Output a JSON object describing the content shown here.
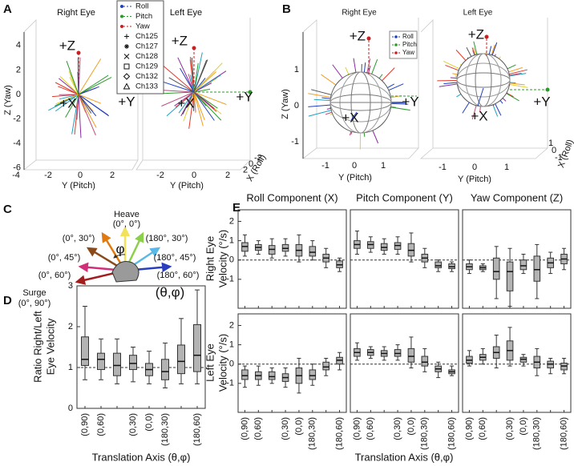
{
  "panel_a": {
    "label": "A",
    "titles": [
      "Right Eye",
      "Left Eye"
    ],
    "legend": [
      {
        "name": "Roll",
        "color": "#1f3fbf"
      },
      {
        "name": "Pitch",
        "color": "#2a9a2a"
      },
      {
        "name": "Yaw",
        "color": "#c82020"
      },
      {
        "name": "Ch125"
      },
      {
        "name": "Ch127"
      },
      {
        "name": "Ch128"
      },
      {
        "name": "Ch129"
      },
      {
        "name": "Ch132"
      },
      {
        "name": "Ch133"
      }
    ],
    "directions": {
      "z": "+Z",
      "x": "+X",
      "y": "+Y"
    },
    "axis_labels": {
      "z": "Z (Yaw)",
      "y": "Y (Pitch)",
      "x": "X (Roll)"
    },
    "zticks": [
      4,
      2,
      0,
      -2,
      -4,
      -6
    ],
    "yticks_right": [
      -4,
      -2,
      0,
      2
    ],
    "yticks_left": [
      -2,
      0,
      2
    ],
    "xticks": [
      -2,
      0,
      2
    ]
  },
  "panel_b": {
    "label": "B",
    "titles": [
      "Right Eye",
      "Left Eye"
    ],
    "legend": [
      {
        "name": "Roll",
        "color": "#1f3fbf"
      },
      {
        "name": "Pitch",
        "color": "#2a9a2a"
      },
      {
        "name": "Yaw",
        "color": "#c82020"
      }
    ],
    "directions": {
      "z": "+Z",
      "x": "+X",
      "y": "+Y"
    },
    "axis_labels": {
      "z": "Z (Yaw)",
      "y": "Y (Pitch)",
      "x": "X (Roll)"
    },
    "zticks": [
      1,
      0,
      -1
    ],
    "yticks": [
      -1,
      0,
      1
    ],
    "xticks": [
      -1,
      0,
      1
    ]
  },
  "panel_c": {
    "label": "C",
    "heave": "Heave",
    "heave_angle": "(0°, 0°)",
    "surge": "Surge",
    "surge_angle": "(0°, 90°)",
    "left_angles": [
      "(0°, 30°)",
      "(0°, 45°)",
      "(0°, 60°)"
    ],
    "right_angles": [
      "(180°, 30°)",
      "(180°, 45°)",
      "(180°, 60°)"
    ],
    "phi": "φ",
    "notation": "(θ,φ)"
  },
  "panel_e": {
    "label": "E",
    "xlabel": "Translation Axis (θ,φ)",
    "ylabels": [
      [
        "Right Eye",
        "Velocity (°/s)"
      ],
      [
        "Left Eye",
        "Velocity (°/s)"
      ]
    ]
  },
  "chart_data": [
    {
      "type": "box",
      "label": "D",
      "ylabel": [
        "Ratio Right/Left",
        "Eye Velocity"
      ],
      "xlabel": "Translation Axis (θ,φ)",
      "categories": [
        "(0,90)",
        "(0,60)",
        null,
        "(0,30)",
        "(0,0)",
        "(180,30)",
        null,
        "(180,60)"
      ],
      "ylim": [
        0,
        3
      ],
      "yticks": [
        0,
        1,
        2,
        3
      ],
      "reference_line": 1,
      "color": "#b3b3b3",
      "boxes": {
        "low": [
          0.7,
          0.7,
          0.6,
          0.65,
          0.6,
          0.5,
          0.6,
          0.6
        ],
        "q1": [
          1.05,
          0.95,
          0.8,
          0.95,
          0.8,
          0.7,
          0.85,
          0.9
        ],
        "median": [
          1.2,
          1.2,
          1.05,
          1.1,
          0.95,
          0.9,
          1.15,
          1.3
        ],
        "q3": [
          1.75,
          1.35,
          1.35,
          1.3,
          1.1,
          1.2,
          1.55,
          2.05
        ],
        "high": [
          2.5,
          1.7,
          1.7,
          1.5,
          1.4,
          1.6,
          2.2,
          2.9
        ]
      }
    },
    {
      "type": "box",
      "title": "Roll Component (X)",
      "ylim": [
        -2.5,
        2.6
      ],
      "yticks": [
        -1,
        0,
        1,
        2
      ],
      "reference_line": 0,
      "color": "#b3b3b3",
      "boxes": {
        "low": [
          0.2,
          0.3,
          0.1,
          0.2,
          -0.1,
          0,
          -0.4,
          -0.6
        ],
        "q1": [
          0.45,
          0.5,
          0.3,
          0.45,
          0.2,
          0.2,
          -0.1,
          -0.4
        ],
        "median": [
          0.7,
          0.65,
          0.55,
          0.6,
          0.5,
          0.4,
          0.1,
          -0.25
        ],
        "q3": [
          0.9,
          0.8,
          0.75,
          0.8,
          0.8,
          0.7,
          0.3,
          -0.05
        ],
        "high": [
          1.3,
          1.0,
          1.1,
          1.1,
          1.3,
          1.0,
          0.6,
          0.1
        ]
      }
    },
    {
      "type": "box",
      "title": "Pitch Component (Y)",
      "ylim": [
        -2.5,
        2.6
      ],
      "reference_line": 0,
      "color": "#b3b3b3",
      "boxes": {
        "low": [
          0.3,
          0.4,
          0.3,
          0.3,
          -0.1,
          -0.4,
          -0.6,
          -0.6
        ],
        "q1": [
          0.6,
          0.6,
          0.5,
          0.55,
          0.2,
          -0.1,
          -0.4,
          -0.45
        ],
        "median": [
          0.8,
          0.8,
          0.65,
          0.75,
          0.5,
          0.1,
          -0.3,
          -0.35
        ],
        "q3": [
          1.0,
          0.95,
          0.85,
          0.9,
          0.85,
          0.3,
          -0.1,
          -0.2
        ],
        "high": [
          1.5,
          1.2,
          1.1,
          1.2,
          1.4,
          0.6,
          0,
          -0.1
        ]
      }
    },
    {
      "type": "box",
      "title": "Yaw Component (Z)",
      "ylim": [
        -2.5,
        2.6
      ],
      "reference_line": 0,
      "color": "#b3b3b3",
      "boxes": {
        "low": [
          -0.7,
          -0.6,
          -2,
          -2.4,
          -0.7,
          -2,
          -0.7,
          -0.5
        ],
        "q1": [
          -0.5,
          -0.5,
          -1,
          -1.6,
          -0.5,
          -1.1,
          -0.4,
          -0.2
        ],
        "median": [
          -0.35,
          -0.4,
          -0.6,
          -0.6,
          -0.3,
          -0.5,
          -0.15,
          0.05
        ],
        "q3": [
          -0.2,
          -0.3,
          0.1,
          -0.1,
          0,
          0.2,
          0.1,
          0.3
        ],
        "high": [
          0,
          -0.2,
          0.7,
          0.6,
          0.3,
          0.8,
          0.4,
          0.6
        ]
      }
    },
    {
      "type": "box",
      "categories": [
        "(0,90)",
        "(0,60)",
        null,
        "(0,30)",
        "(0,0)",
        "(180,30)",
        null,
        "(180,60)"
      ],
      "ylim": [
        -2.5,
        2.6
      ],
      "yticks": [
        -1,
        0,
        1,
        2
      ],
      "reference_line": 0,
      "color": "#b3b3b3",
      "boxes": {
        "low": [
          -1.2,
          -1.1,
          -1,
          -1.2,
          -1.5,
          -1.1,
          -0.6,
          -0.3
        ],
        "q1": [
          -0.8,
          -0.8,
          -0.8,
          -0.9,
          -1.0,
          -0.8,
          -0.3,
          0
        ],
        "median": [
          -0.6,
          -0.6,
          -0.65,
          -0.7,
          -0.6,
          -0.6,
          -0.15,
          0.2
        ],
        "q3": [
          -0.3,
          -0.4,
          -0.4,
          -0.5,
          -0.2,
          -0.3,
          0.1,
          0.35
        ],
        "high": [
          -0.1,
          -0.1,
          -0.2,
          -0.2,
          0.3,
          0,
          0.3,
          0.6
        ]
      }
    },
    {
      "type": "box",
      "categories": [
        "(0,90)",
        "(0,60)",
        null,
        "(0,30)",
        "(0,0)",
        "(180,30)",
        null,
        "(180,60)"
      ],
      "ylim": [
        -2.5,
        2.6
      ],
      "reference_line": 0,
      "color": "#b3b3b3",
      "boxes": {
        "low": [
          0.2,
          0.3,
          0.2,
          0.2,
          -0.2,
          -0.4,
          -0.7,
          -0.6
        ],
        "q1": [
          0.4,
          0.45,
          0.4,
          0.4,
          0.1,
          -0.1,
          -0.4,
          -0.5
        ],
        "median": [
          0.6,
          0.6,
          0.55,
          0.55,
          0.4,
          0.1,
          -0.25,
          -0.4
        ],
        "q3": [
          0.8,
          0.75,
          0.7,
          0.75,
          0.8,
          0.4,
          -0.1,
          -0.3
        ],
        "high": [
          1.1,
          0.9,
          0.9,
          1.0,
          1.4,
          0.8,
          0.1,
          -0.1
        ]
      }
    },
    {
      "type": "box",
      "categories": [
        "(0,90)",
        "(0,60)",
        null,
        "(0,30)",
        "(0,0)",
        "(180,30)",
        null,
        "(180,60)"
      ],
      "ylim": [
        -2.5,
        2.6
      ],
      "reference_line": 0,
      "color": "#b3b3b3",
      "boxes": {
        "low": [
          -0.1,
          0,
          -0.2,
          -0.1,
          -0.1,
          -0.6,
          -0.5,
          -0.5
        ],
        "q1": [
          0.05,
          0.2,
          0.3,
          0.2,
          0.1,
          -0.2,
          -0.2,
          -0.3
        ],
        "median": [
          0.2,
          0.35,
          0.6,
          0.7,
          0.25,
          0.1,
          0,
          -0.1
        ],
        "q3": [
          0.4,
          0.5,
          0.9,
          1.2,
          0.35,
          0.4,
          0.15,
          0.05
        ],
        "high": [
          0.7,
          0.8,
          1.5,
          1.9,
          0.5,
          0.8,
          0.3,
          0.3
        ]
      }
    }
  ]
}
